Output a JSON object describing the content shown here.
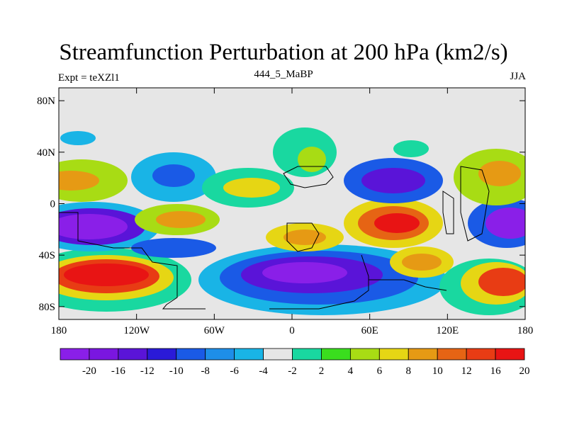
{
  "title": "Streamfunction Perturbation at 200 hPa (km2/s)",
  "left_label": "Expt = teXZl1",
  "center_label": "444_5_MaBP",
  "right_label": "JJA",
  "map": {
    "lat_ticks": [
      "80N",
      "40N",
      "0",
      "40S",
      "80S"
    ],
    "lon_ticks": [
      "180",
      "120W",
      "60W",
      "0",
      "60E",
      "120E",
      "180"
    ],
    "background_color": "#e6e6e6"
  },
  "colorbar": {
    "colors": [
      "#8a1fe8",
      "#7a16e0",
      "#5a14d8",
      "#2a1ad8",
      "#1a5ae6",
      "#1e8ee8",
      "#19b4e6",
      "#e6e6e6",
      "#19d8a0",
      "#3ade1e",
      "#a8dc14",
      "#e6d614",
      "#e69a14",
      "#e66414",
      "#e83c14",
      "#e81414"
    ],
    "labels": [
      "-20",
      "-16",
      "-12",
      "-10",
      "-8",
      "-6",
      "-4",
      "-2",
      "2",
      "4",
      "6",
      "8",
      "10",
      "12",
      "16",
      "20"
    ]
  },
  "colors": {
    "purple": "#8a1fe8",
    "blue": "#1a5ae6",
    "cyan": "#19b4e6",
    "green": "#19d8a0",
    "yellow": "#e6d614",
    "orange": "#e69a14",
    "red": "#e81414"
  }
}
